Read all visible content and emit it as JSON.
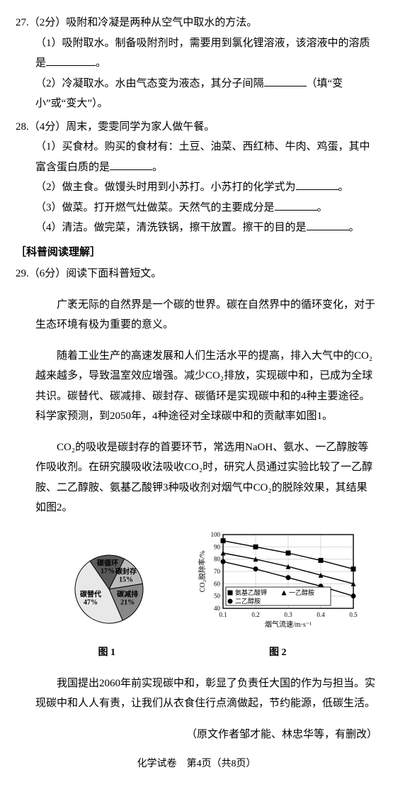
{
  "q27": {
    "num": "27.",
    "points": "（2分）",
    "stem": "吸附和冷凝是两种从空气中取水的方法。",
    "p1_pre": "（1）吸附取水。制备吸附剂时，需要用到氯化锂溶液，该溶液中的溶质是",
    "p1_post": "。",
    "p2_pre": "（2）冷凝取水。水由气态变为液态，其分子间隔",
    "p2_post": "（填“变小”或“变大”）。"
  },
  "q28": {
    "num": "28.",
    "points": "（4分）",
    "stem": "周末，雯雯同学为家人做午餐。",
    "p1_pre": "（1）买食材。购买的食材有：土豆、油菜、西红柿、牛肉、鸡蛋，其中富含蛋白质的是",
    "p1_post": "。",
    "p2_pre": "（2）做主食。做馒头时用到小苏打。小苏打的化学式为",
    "p2_post": "。",
    "p3_pre": "（3）做菜。打开燃气灶做菜。天然气的主要成分是",
    "p3_post": "。",
    "p4_pre": "（4）清洁。做完菜，清洗铁锅，擦干放置。擦干的目的是",
    "p4_post": "。"
  },
  "section": "［科普阅读理解］",
  "q29": {
    "num": "29.",
    "points": "（6分）",
    "stem": "阅读下面科普短文。",
    "para1": "广袤无际的自然界是一个碳的世界。碳在自然界中的循环变化，对于生态环境有极为重要的意义。",
    "para2": "随着工业生产的高速发展和人们生活水平的提高，排入大气中的CO₂越来越多，导致温室效应增强。减少CO₂排放，实现碳中和，已成为全球共识。碳替代、碳减排、碳封存、碳循环是实现碳中和的4种主要途径。科学家预测，到2050年，4种途径对全球碳中和的贡献率如图1。",
    "para3": "CO₂的吸收是碳封存的首要环节，常选用NaOH、氨水、一乙醇胺等作吸收剂。在研究膜吸收法吸收CO₂时，研究人员通过实验比较了一乙醇胺、二乙醇胺、氨基乙酸钾3种吸收剂对烟气中CO₂的脱除效果，其结果如图2。",
    "para4": "我国提出2060年前实现碳中和，彰显了负责任大国的作为与担当。实现碳中和人人有责，让我们从衣食住行点滴做起，节约能源，低碳生活。",
    "source": "（原文作者邹才能、林忠华等，有删改）"
  },
  "fig1": {
    "caption": "图 1",
    "slices": [
      {
        "label": "碳循环",
        "value": 17,
        "text": "碳循环\n17%",
        "color": "#5a5a5a"
      },
      {
        "label": "碳封存",
        "value": 15,
        "text": "碳封存\n15%",
        "color": "#bcbcbc"
      },
      {
        "label": "碳减排",
        "value": 21,
        "text": "碳减排\n21%",
        "color": "#888888"
      },
      {
        "label": "碳替代",
        "value": 47,
        "text": "碳替代\n47%",
        "color": "#e8e8e8"
      }
    ],
    "pie_border": "#000",
    "font_size": 10
  },
  "fig2": {
    "caption": "图 2",
    "xlabel": "烟气流速/m·s⁻¹",
    "ylabel": "CO₂脱除率/%",
    "xlim": [
      0.1,
      0.5
    ],
    "xticks": [
      0.1,
      0.2,
      0.3,
      0.4,
      0.5
    ],
    "ylim": [
      40,
      100
    ],
    "yticks": [
      40,
      50,
      60,
      70,
      80,
      90,
      100
    ],
    "grid_color": "#d8d8d8",
    "border_color": "#000",
    "bg": "#ffffff",
    "axis_fontsize": 9,
    "label_fontsize": 10,
    "legend_fontsize": 9,
    "line_width": 1.4,
    "marker_size": 3.5,
    "series": [
      {
        "name": "氨基乙酸钾",
        "marker": "square",
        "color": "#000",
        "x": [
          0.1,
          0.2,
          0.3,
          0.4,
          0.5
        ],
        "y": [
          95,
          90,
          85,
          79,
          72
        ]
      },
      {
        "name": "一乙醇胺",
        "marker": "triangle",
        "color": "#000",
        "x": [
          0.1,
          0.2,
          0.3,
          0.4,
          0.5
        ],
        "y": [
          85,
          80,
          74,
          67,
          60
        ]
      },
      {
        "name": "二乙醇胺",
        "marker": "circle",
        "color": "#000",
        "x": [
          0.1,
          0.2,
          0.3,
          0.4,
          0.5
        ],
        "y": [
          78,
          72,
          65,
          58,
          50
        ]
      }
    ],
    "legend_pos": "inside-bottom-left"
  },
  "footer": "化学试卷　第4页（共8页）"
}
